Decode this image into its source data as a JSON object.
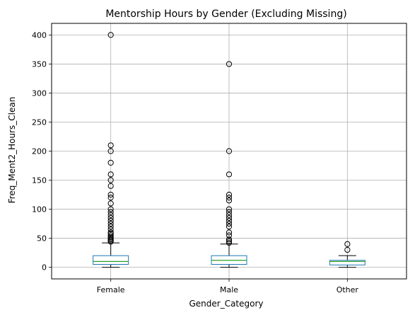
{
  "chart_data": {
    "type": "box",
    "title": "Mentorship Hours by Gender (Excluding Missing)",
    "xlabel": "Gender_Category",
    "ylabel": "Freq_Ment2_Hours_Clean",
    "categories": [
      "Female",
      "Male",
      "Other"
    ],
    "ylim": [
      -20,
      420
    ],
    "yticks": [
      0,
      50,
      100,
      150,
      200,
      250,
      300,
      350,
      400
    ],
    "grid": true,
    "boxes": [
      {
        "name": "Female",
        "whisker_low": 0,
        "q1": 5,
        "median": 10,
        "q3": 20,
        "whisker_high": 42,
        "outliers": [
          44,
          46,
          48,
          50,
          52,
          55,
          58,
          60,
          65,
          70,
          75,
          80,
          85,
          90,
          95,
          100,
          110,
          120,
          125,
          140,
          150,
          160,
          180,
          200,
          210,
          400
        ]
      },
      {
        "name": "Male",
        "whisker_low": 0,
        "q1": 5,
        "median": 12,
        "q3": 20,
        "whisker_high": 40,
        "outliers": [
          42,
          45,
          48,
          55,
          60,
          70,
          75,
          80,
          85,
          90,
          95,
          100,
          115,
          120,
          125,
          160,
          200,
          350
        ]
      },
      {
        "name": "Other",
        "whisker_low": 0,
        "q1": 4,
        "median": 10,
        "q3": 12,
        "whisker_high": 20,
        "outliers": [
          30,
          40
        ]
      }
    ],
    "colors": {
      "box": "#1f77b4",
      "median": "#2ca02c",
      "whisker": "#000000",
      "grid": "#b0b0b0",
      "outlier": "#000000"
    }
  }
}
